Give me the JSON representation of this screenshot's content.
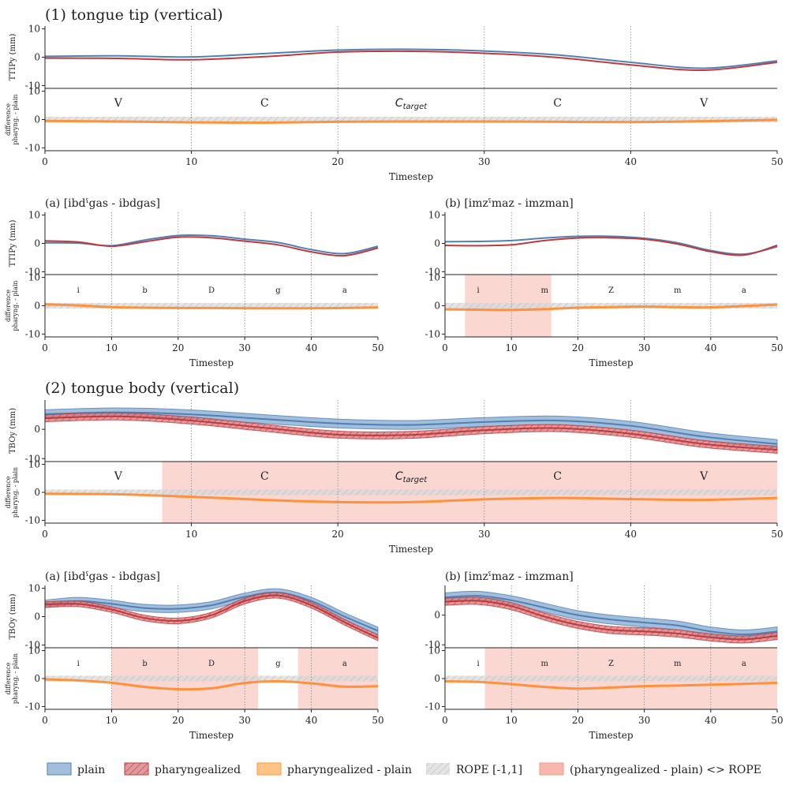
{
  "colors": {
    "plain": "#4f81b5",
    "plain_band": "#7aa3cc",
    "pharyngealized": "#c0393c",
    "pharyngealized_band": "#d9777a",
    "difference": "#ff8a2c",
    "rope": "#d9d9d9",
    "rope_hatch": "#c8c8c8",
    "highlight": "#f7b7ad"
  },
  "legend": {
    "plain": "plain",
    "pharyngealized": "pharyngealized",
    "difference": "pharyngealized - plain",
    "rope": "ROPE [-1,1]",
    "outside": "(pharyngealized - plain) <> ROPE"
  },
  "chart_data": [
    {
      "id": "tt-overall",
      "section_title": "(1) tongue tip (vertical)",
      "panel_title": "",
      "type": "line",
      "xlabel": "Timestep",
      "ylabel_top": "TTIPy (mm)",
      "ylabel_bottom": "difference pharyng. - plain",
      "xlim": [
        0,
        50
      ],
      "ylim_top": [
        -11,
        11
      ],
      "ylim_bottom": [
        -11,
        11
      ],
      "xticks": [
        0,
        10,
        20,
        30,
        40,
        50
      ],
      "yticks_top": [
        10,
        0,
        -10
      ],
      "yticks_bottom": [
        10,
        0,
        -10
      ],
      "boundaries": [
        10,
        20,
        30,
        40
      ],
      "rope": [
        -1,
        1
      ],
      "segments": [
        {
          "x": 5,
          "label": "V"
        },
        {
          "x": 15,
          "label": "C"
        },
        {
          "x": 25,
          "label": "C",
          "sub": "target"
        },
        {
          "x": 35,
          "label": "C"
        },
        {
          "x": 45,
          "label": "V"
        }
      ],
      "series": [
        {
          "name": "plain",
          "x": [
            0,
            5,
            10,
            15,
            20,
            25,
            30,
            35,
            40,
            45,
            50
          ],
          "y": [
            0.3,
            0.5,
            0.1,
            1.3,
            2.5,
            2.8,
            2.2,
            0.8,
            -1.8,
            -3.9,
            -1.3
          ],
          "band": 0
        },
        {
          "name": "pharyngealized",
          "x": [
            0,
            5,
            10,
            15,
            20,
            25,
            30,
            35,
            40,
            45,
            50
          ],
          "y": [
            -0.3,
            -0.4,
            -0.9,
            0.2,
            1.8,
            2.1,
            1.4,
            -0.1,
            -2.7,
            -4.6,
            -1.8
          ],
          "band": 0
        },
        {
          "name": "pharyngealized - plain",
          "x": [
            0,
            5,
            10,
            15,
            20,
            25,
            30,
            35,
            40,
            45,
            50
          ],
          "y": [
            -0.5,
            -0.7,
            -1.0,
            -1.1,
            -0.8,
            -0.7,
            -0.7,
            -0.8,
            -0.9,
            -0.6,
            -0.1
          ]
        }
      ],
      "highlight": []
    },
    {
      "id": "tt-a",
      "section_title": "",
      "panel_title": "(a) [ibdˤgas - ibdgas]",
      "type": "line",
      "xlabel": "Timestep",
      "ylabel_top": "TTIPy (mm)",
      "ylabel_bottom": "difference pharyng. - plain",
      "xlim": [
        0,
        50
      ],
      "ylim_top": [
        -11,
        11
      ],
      "ylim_bottom": [
        -11,
        11
      ],
      "xticks": [
        0,
        10,
        20,
        30,
        40,
        50
      ],
      "yticks_top": [
        10,
        0,
        -10
      ],
      "yticks_bottom": [
        10,
        0,
        -10
      ],
      "boundaries": [
        10,
        20,
        30,
        40
      ],
      "rope": [
        -1,
        1
      ],
      "segments": [
        {
          "x": 5,
          "label": "i"
        },
        {
          "x": 15,
          "label": "b"
        },
        {
          "x": 25,
          "label": "D"
        },
        {
          "x": 35,
          "label": "g"
        },
        {
          "x": 45,
          "label": "a"
        }
      ],
      "series": [
        {
          "name": "plain",
          "x": [
            0,
            5,
            10,
            15,
            20,
            25,
            30,
            35,
            40,
            45,
            50
          ],
          "y": [
            0.2,
            0.1,
            -0.8,
            1.2,
            2.8,
            2.7,
            1.5,
            0.3,
            -2.2,
            -3.6,
            -1.0
          ],
          "band": 0
        },
        {
          "name": "pharyngealized",
          "x": [
            0,
            5,
            10,
            15,
            20,
            25,
            30,
            35,
            40,
            45,
            50
          ],
          "y": [
            0.9,
            0.5,
            -1.0,
            0.6,
            2.2,
            2.0,
            0.8,
            -0.5,
            -3.0,
            -4.3,
            -1.6
          ],
          "band": 0
        },
        {
          "name": "pharyngealized - plain",
          "x": [
            0,
            5,
            10,
            15,
            20,
            25,
            30,
            35,
            40,
            45,
            50
          ],
          "y": [
            0.5,
            0.1,
            -0.5,
            -0.7,
            -0.8,
            -0.8,
            -0.9,
            -0.9,
            -0.9,
            -0.8,
            -0.6
          ]
        }
      ],
      "highlight": []
    },
    {
      "id": "tt-b",
      "section_title": "",
      "panel_title": "(b) [imzˤmaz - imzman]",
      "type": "line",
      "xlabel": "Timestep",
      "ylabel_top": "",
      "ylabel_bottom": "",
      "xlim": [
        0,
        50
      ],
      "ylim_top": [
        -11,
        11
      ],
      "ylim_bottom": [
        -11,
        11
      ],
      "xticks": [
        0,
        10,
        20,
        30,
        40,
        50
      ],
      "yticks_top": [
        10,
        0,
        -10
      ],
      "yticks_bottom": [
        10,
        0,
        -10
      ],
      "boundaries": [
        10,
        20,
        30,
        40
      ],
      "rope": [
        -1,
        1
      ],
      "segments": [
        {
          "x": 5,
          "label": "i"
        },
        {
          "x": 15,
          "label": "m"
        },
        {
          "x": 25,
          "label": "Z"
        },
        {
          "x": 35,
          "label": "m"
        },
        {
          "x": 45,
          "label": "a"
        }
      ],
      "series": [
        {
          "name": "plain",
          "x": [
            0,
            5,
            10,
            15,
            20,
            25,
            30,
            35,
            40,
            45,
            50
          ],
          "y": [
            0.6,
            0.7,
            1.0,
            1.9,
            2.5,
            2.5,
            1.8,
            0.2,
            -2.5,
            -3.8,
            -1.2
          ],
          "band": 0
        },
        {
          "name": "pharyngealized",
          "x": [
            0,
            5,
            10,
            15,
            20,
            25,
            30,
            35,
            40,
            45,
            50
          ],
          "y": [
            -0.7,
            -0.8,
            -0.5,
            1.0,
            1.9,
            2.0,
            1.5,
            -0.2,
            -2.9,
            -4.1,
            -0.7
          ],
          "band": 0
        },
        {
          "name": "pharyngealized - plain",
          "x": [
            0,
            5,
            10,
            15,
            20,
            25,
            30,
            35,
            40,
            45,
            50
          ],
          "y": [
            -1.3,
            -1.4,
            -1.5,
            -1.2,
            -0.7,
            -0.5,
            -0.3,
            -0.5,
            -0.6,
            -0.1,
            0.4
          ]
        }
      ],
      "highlight": [
        [
          3,
          16
        ]
      ]
    },
    {
      "id": "tb-overall",
      "section_title": "(2) tongue body (vertical)",
      "panel_title": "",
      "type": "line",
      "xlabel": "Timestep",
      "ylabel_top": "TBOy (mm)",
      "ylabel_bottom": "difference pharyng. - plain",
      "xlim": [
        0,
        50
      ],
      "ylim_top": [
        -11,
        10
      ],
      "ylim_bottom": [
        -11,
        11
      ],
      "xticks": [
        0,
        10,
        20,
        30,
        40,
        50
      ],
      "yticks_top": [
        0,
        -10
      ],
      "yticks_bottom": [
        10,
        0,
        -10
      ],
      "boundaries": [
        10,
        20,
        30,
        40
      ],
      "rope": [
        -1,
        1
      ],
      "segments": [
        {
          "x": 5,
          "label": "V"
        },
        {
          "x": 15,
          "label": "C"
        },
        {
          "x": 25,
          "label": "C",
          "sub": "target"
        },
        {
          "x": 35,
          "label": "C"
        },
        {
          "x": 45,
          "label": "V"
        }
      ],
      "series": [
        {
          "name": "plain",
          "x": [
            0,
            5,
            10,
            15,
            20,
            25,
            30,
            35,
            40,
            45,
            50
          ],
          "y": [
            5.2,
            5.8,
            5.1,
            3.5,
            2.0,
            1.5,
            2.5,
            3.0,
            1.2,
            -2.5,
            -5.0
          ],
          "band": 1.5
        },
        {
          "name": "pharyngealized",
          "x": [
            0,
            5,
            10,
            15,
            20,
            25,
            30,
            35,
            40,
            45,
            50
          ],
          "y": [
            3.8,
            4.4,
            3.0,
            0.5,
            -1.8,
            -1.9,
            -0.3,
            0.4,
            -1.5,
            -5.0,
            -7.0
          ],
          "band": 1.2
        },
        {
          "name": "pharyngealized - plain",
          "x": [
            0,
            5,
            10,
            15,
            20,
            25,
            30,
            35,
            40,
            45,
            50
          ],
          "y": [
            -0.5,
            -0.7,
            -1.6,
            -2.7,
            -3.5,
            -3.5,
            -2.5,
            -2.0,
            -2.4,
            -2.7,
            -2.0
          ]
        }
      ],
      "highlight": [
        [
          8,
          50
        ]
      ]
    },
    {
      "id": "tb-a",
      "section_title": "",
      "panel_title": "(a) [ibdˤgas - ibdgas]",
      "type": "line",
      "xlabel": "Timestep",
      "ylabel_top": "TBOy (mm)",
      "ylabel_bottom": "difference pharyng. - plain",
      "xlim": [
        0,
        50
      ],
      "ylim_top": [
        -11,
        11
      ],
      "ylim_bottom": [
        -11,
        11
      ],
      "xticks": [
        0,
        10,
        20,
        30,
        40,
        50
      ],
      "yticks_top": [
        10,
        0,
        -10
      ],
      "yticks_bottom": [
        10,
        0,
        -10
      ],
      "boundaries": [
        10,
        20,
        30,
        40
      ],
      "rope": [
        -1,
        1
      ],
      "segments": [
        {
          "x": 5,
          "label": "i"
        },
        {
          "x": 15,
          "label": "b"
        },
        {
          "x": 25,
          "label": "D"
        },
        {
          "x": 35,
          "label": "g"
        },
        {
          "x": 45,
          "label": "a"
        }
      ],
      "series": [
        {
          "name": "plain",
          "x": [
            0,
            5,
            10,
            15,
            20,
            25,
            30,
            35,
            40,
            45,
            50
          ],
          "y": [
            4.5,
            5.5,
            4.5,
            3.0,
            2.8,
            4.0,
            7.0,
            8.5,
            5.5,
            0.0,
            -5.0
          ],
          "band": 1.3
        },
        {
          "name": "pharyngealized",
          "x": [
            0,
            5,
            10,
            15,
            20,
            25,
            30,
            35,
            40,
            45,
            50
          ],
          "y": [
            4.2,
            4.5,
            2.5,
            -0.5,
            -1.5,
            0.5,
            5.5,
            7.5,
            4.0,
            -2.0,
            -7.5
          ],
          "band": 1.0
        },
        {
          "name": "pharyngealized - plain",
          "x": [
            0,
            5,
            10,
            15,
            20,
            25,
            30,
            35,
            40,
            45,
            50
          ],
          "y": [
            -0.3,
            -0.7,
            -1.5,
            -3.0,
            -3.8,
            -3.5,
            -1.6,
            -1.0,
            -1.7,
            -2.9,
            -2.7
          ]
        }
      ],
      "highlight": [
        [
          10,
          32
        ],
        [
          38,
          50
        ]
      ]
    },
    {
      "id": "tb-b",
      "section_title": "",
      "panel_title": "(b) [imzˤmaz - imzman]",
      "type": "line",
      "xlabel": "Timestep",
      "ylabel_top": "",
      "ylabel_bottom": "",
      "xlim": [
        0,
        50
      ],
      "ylim_top": [
        -11,
        10
      ],
      "ylim_bottom": [
        -11,
        11
      ],
      "xticks": [
        0,
        10,
        20,
        30,
        40,
        50
      ],
      "yticks_top": [
        0,
        -10
      ],
      "yticks_bottom": [
        10,
        0,
        -10
      ],
      "boundaries": [
        10,
        20,
        30,
        40
      ],
      "rope": [
        -1,
        1
      ],
      "segments": [
        {
          "x": 5,
          "label": "i"
        },
        {
          "x": 15,
          "label": "m"
        },
        {
          "x": 25,
          "label": "Z"
        },
        {
          "x": 35,
          "label": "m"
        },
        {
          "x": 45,
          "label": "a"
        }
      ],
      "series": [
        {
          "name": "plain",
          "x": [
            0,
            5,
            10,
            15,
            20,
            25,
            30,
            35,
            40,
            45,
            50
          ],
          "y": [
            6.0,
            6.5,
            5.0,
            2.5,
            0.0,
            -1.5,
            -2.5,
            -3.5,
            -5.5,
            -6.5,
            -5.5
          ],
          "band": 1.5
        },
        {
          "name": "pharyngealized",
          "x": [
            0,
            5,
            10,
            15,
            20,
            25,
            30,
            35,
            40,
            45,
            50
          ],
          "y": [
            4.5,
            4.8,
            3.0,
            -0.5,
            -3.3,
            -5.0,
            -5.5,
            -6.2,
            -7.5,
            -8.2,
            -7.0
          ],
          "band": 1.2
        },
        {
          "name": "pharyngealized - plain",
          "x": [
            0,
            5,
            10,
            15,
            20,
            25,
            30,
            35,
            40,
            45,
            50
          ],
          "y": [
            -1.0,
            -1.2,
            -2.0,
            -3.0,
            -3.6,
            -3.2,
            -2.7,
            -2.5,
            -2.2,
            -1.9,
            -1.5
          ]
        }
      ],
      "highlight": [
        [
          6,
          50
        ]
      ]
    }
  ]
}
